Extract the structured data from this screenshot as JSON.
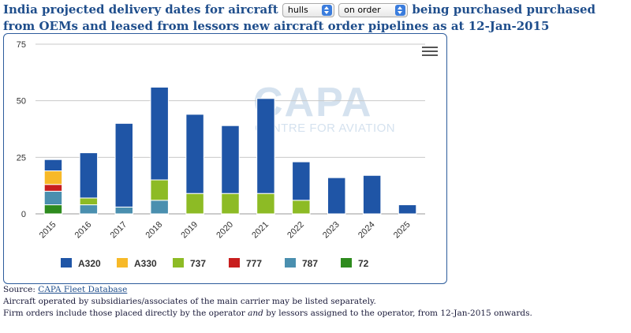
{
  "title": {
    "part1": "India projected delivery dates for aircraft",
    "part2": "being purchased purchased from OEMs and leased from lessors new aircraft order pipelines as at 12-Jan-2015"
  },
  "controls": {
    "unit_select": "hulls",
    "status_select": "on order"
  },
  "watermark": {
    "main": "CAPA",
    "sub": "CENTRE FOR AVIATION"
  },
  "colors": {
    "A320": "#1f55a6",
    "A330": "#f7b928",
    "737": "#8dbb25",
    "777": "#c81e1e",
    "787": "#4a8faf",
    "72": "#2e8b1e"
  },
  "chart_data": {
    "type": "bar",
    "stacked": true,
    "categories": [
      "2015",
      "2016",
      "2017",
      "2018",
      "2019",
      "2020",
      "2021",
      "2022",
      "2023",
      "2024",
      "2025"
    ],
    "series": [
      {
        "name": "72",
        "values": [
          4,
          0,
          0,
          0,
          0,
          0,
          0,
          0,
          0,
          0,
          0
        ]
      },
      {
        "name": "787",
        "values": [
          6,
          4,
          3,
          6,
          0,
          0,
          0,
          0,
          0,
          0,
          0
        ]
      },
      {
        "name": "777",
        "values": [
          3,
          0,
          0,
          0,
          0,
          0,
          0,
          0,
          0,
          0,
          0
        ]
      },
      {
        "name": "737",
        "values": [
          0,
          3,
          0,
          9,
          9,
          9,
          9,
          6,
          0,
          0,
          0
        ]
      },
      {
        "name": "A330",
        "values": [
          6,
          0,
          0,
          0,
          0,
          0,
          0,
          0,
          0,
          0,
          0
        ]
      },
      {
        "name": "A320",
        "values": [
          5,
          20,
          37,
          41,
          35,
          30,
          42,
          17,
          16,
          17,
          4
        ]
      }
    ],
    "yticks": [
      0,
      25,
      50,
      75
    ],
    "ylim": [
      0,
      75
    ],
    "grid": true,
    "legend": {
      "placement": "bottom",
      "order": [
        "A320",
        "A330",
        "737",
        "777",
        "787",
        "72"
      ]
    }
  },
  "footer": {
    "source_prefix": "Source:",
    "source_link": "CAPA Fleet Database",
    "note1": "Aircraft operated by subsidiaries/associates of the main carrier may be listed separately.",
    "note2_a": "Firm orders include those placed directly by the operator",
    "note2_b": "and",
    "note2_c": "by lessors assigned to the operator, from 12-Jan-2015 onwards."
  }
}
